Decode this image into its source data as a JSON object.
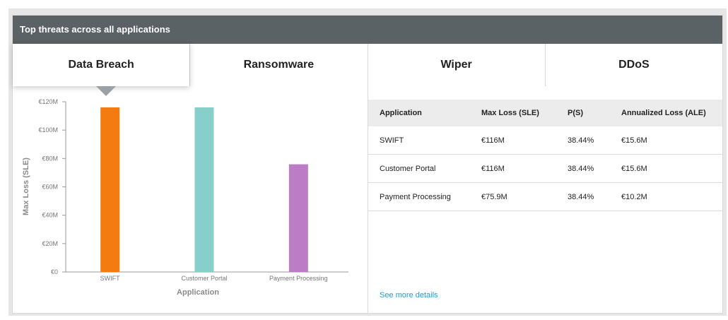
{
  "header": {
    "title": "Top threats across all applications"
  },
  "tabs": [
    {
      "label": "Data Breach",
      "active": true
    },
    {
      "label": "Ransomware",
      "active": false
    },
    {
      "label": "Wiper",
      "active": false
    },
    {
      "label": "DDoS",
      "active": false
    }
  ],
  "chart_data": {
    "type": "bar",
    "categories": [
      "SWIFT",
      "Customer Portal",
      "Payment Processing"
    ],
    "values": [
      116,
      116,
      75.9
    ],
    "colors": [
      "#f47c0f",
      "#86cfca",
      "#bd7cc6"
    ],
    "ylim": [
      0,
      120
    ],
    "yticks": [
      0,
      20,
      40,
      60,
      80,
      100,
      120
    ],
    "ytick_labels": [
      "€0",
      "€20M",
      "€40M",
      "€60M",
      "€80M",
      "€100M",
      "€120M"
    ],
    "xlabel": "Application",
    "ylabel": "Max Loss (SLE)",
    "title": ""
  },
  "table": {
    "headers": [
      "Application",
      "Max Loss (SLE)",
      "P(S)",
      "Annualized Loss (ALE)"
    ],
    "rows": [
      [
        "SWIFT",
        "€116M",
        "38.44%",
        "€15.6M"
      ],
      [
        "Customer Portal",
        "€116M",
        "38.44%",
        "€15.6M"
      ],
      [
        "Payment Processing",
        "€75.9M",
        "38.44%",
        "€10.2M"
      ]
    ]
  },
  "links": {
    "see_more": "See more details"
  }
}
